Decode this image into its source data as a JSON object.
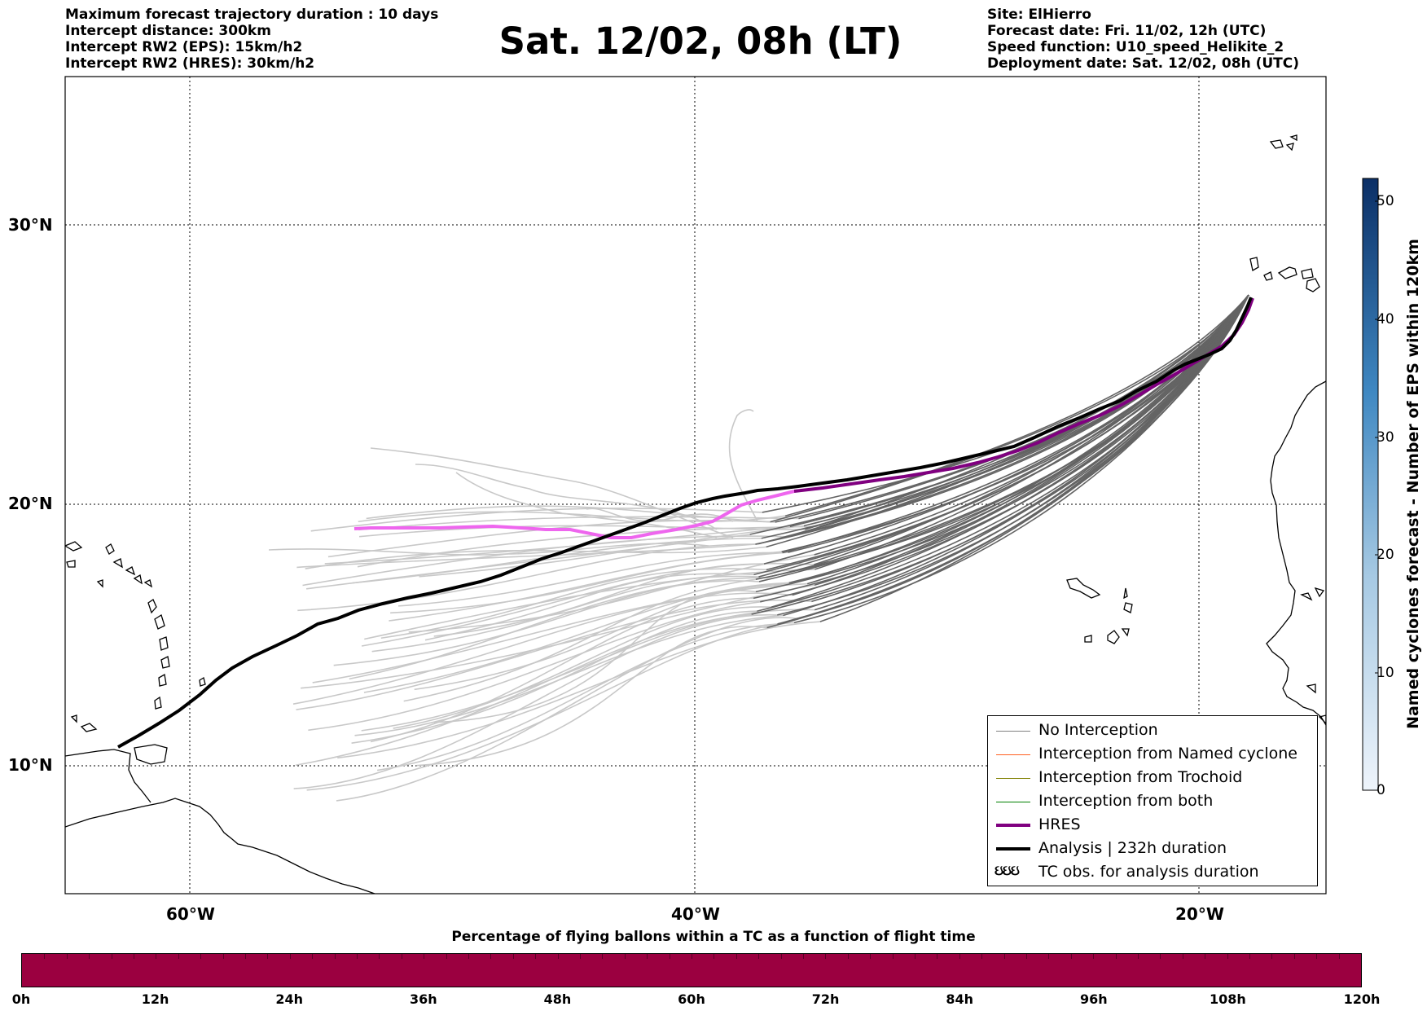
{
  "header": {
    "left": [
      "Maximum forecast trajectory duration : 10 days",
      "Intercept distance: 300km",
      "Intercept RW2 (EPS):  15km/h2",
      "Intercept RW2 (HRES): 30km/h2"
    ],
    "title": "Sat. 12/02, 08h (LT)",
    "right": [
      "Site: ElHierro",
      "Forecast date: Fri. 11/02, 12h (UTC)",
      "Speed function: U10_speed_Helikite_2",
      "Deployment date: Sat. 12/02, 08h (UTC)"
    ]
  },
  "map": {
    "lat_labels": [
      "30°N",
      "20°N",
      "10°N"
    ],
    "lon_labels": [
      "60°W",
      "40°W",
      "20°W"
    ]
  },
  "legend": {
    "no_interception": "No Interception",
    "named_cyclone": "Interception from Named cyclone",
    "trochoid": "Interception from Trochoid",
    "both": "Interception from both",
    "hres": "HRES",
    "analysis": "Analysis | 232h duration",
    "tc_obs_symbol": "ઇઇઇ",
    "tc_obs": "TC obs. for analysis duration"
  },
  "colors": {
    "no_interception": "#808080",
    "named_cyclone": "#ff6020",
    "trochoid": "#808000",
    "both": "#008000",
    "hres": "#800080",
    "hres_forecast_segment": "#ee66ee",
    "analysis": "#000000",
    "trajectory_dark": "#646464",
    "trajectory_light": "#c8c8c8",
    "time_bar": "#9b0040"
  },
  "colorbar": {
    "label": "Named cyclones forecast - Number of EPS within 120km",
    "ticks": [
      "50",
      "40",
      "30",
      "20",
      "10",
      "0"
    ],
    "min": 0,
    "max": 52
  },
  "time_bar": {
    "caption": "Percentage of flying ballons within a TC as a function of flight time",
    "ticks": [
      "0h",
      "12h",
      "24h",
      "36h",
      "48h",
      "60h",
      "72h",
      "84h",
      "96h",
      "108h",
      "120h"
    ]
  }
}
